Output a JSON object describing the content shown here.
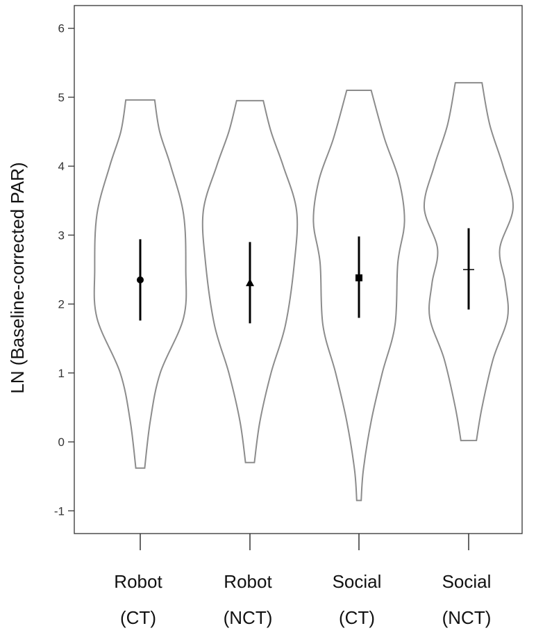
{
  "chart_data": {
    "type": "violin",
    "title": "",
    "ylabel": "LN (Baseline-corrected PAR)",
    "ylim": [
      -1.33,
      6.33
    ],
    "yticks": [
      6,
      5,
      4,
      3,
      2,
      1,
      0,
      -1
    ],
    "ytick_labels": [
      "6",
      "5",
      "4",
      "3",
      "2",
      "1",
      "0",
      "-1"
    ],
    "grid": false,
    "colors": {
      "violin_outline": "#8c8c8c",
      "marker": "#000000",
      "axis": "#333333"
    },
    "categories": [
      {
        "line1": "Robot",
        "line2": "(CT)",
        "marker": "circle",
        "mean": 2.35,
        "ci": [
          1.76,
          2.94
        ],
        "min": -0.38,
        "max": 4.96,
        "profile": [
          [
            -0.38,
            0.08
          ],
          [
            0.3,
            0.18
          ],
          [
            1.0,
            0.36
          ],
          [
            1.8,
            0.78
          ],
          [
            2.5,
            0.82
          ],
          [
            3.3,
            0.78
          ],
          [
            4.0,
            0.55
          ],
          [
            4.5,
            0.35
          ],
          [
            4.96,
            0.26
          ]
        ]
      },
      {
        "line1": "Robot",
        "line2": "(NCT)",
        "marker": "triangle",
        "mean": 2.3,
        "ci": [
          1.72,
          2.9
        ],
        "min": -0.3,
        "max": 4.95,
        "profile": [
          [
            -0.3,
            0.08
          ],
          [
            0.3,
            0.18
          ],
          [
            1.0,
            0.38
          ],
          [
            1.7,
            0.64
          ],
          [
            2.6,
            0.8
          ],
          [
            3.35,
            0.84
          ],
          [
            4.0,
            0.6
          ],
          [
            4.5,
            0.38
          ],
          [
            4.95,
            0.24
          ]
        ]
      },
      {
        "line1": "Social",
        "line2": "(CT)",
        "marker": "square",
        "mean": 2.38,
        "ci": [
          1.8,
          2.98
        ],
        "min": -0.85,
        "max": 5.1,
        "profile": [
          [
            -0.85,
            0.04
          ],
          [
            -0.4,
            0.08
          ],
          [
            0.3,
            0.22
          ],
          [
            1.0,
            0.42
          ],
          [
            1.7,
            0.65
          ],
          [
            2.6,
            0.7
          ],
          [
            3.2,
            0.82
          ],
          [
            3.8,
            0.72
          ],
          [
            4.4,
            0.46
          ],
          [
            5.1,
            0.22
          ]
        ]
      },
      {
        "line1": "Social",
        "line2": "(NCT)",
        "marker": "cross",
        "mean": 2.5,
        "ci": [
          1.92,
          3.1
        ],
        "min": 0.02,
        "max": 5.21,
        "profile": [
          [
            0.02,
            0.14
          ],
          [
            0.5,
            0.24
          ],
          [
            1.2,
            0.44
          ],
          [
            1.8,
            0.7
          ],
          [
            2.3,
            0.66
          ],
          [
            2.8,
            0.56
          ],
          [
            3.4,
            0.8
          ],
          [
            4.0,
            0.62
          ],
          [
            4.6,
            0.38
          ],
          [
            5.21,
            0.24
          ]
        ]
      }
    ]
  }
}
